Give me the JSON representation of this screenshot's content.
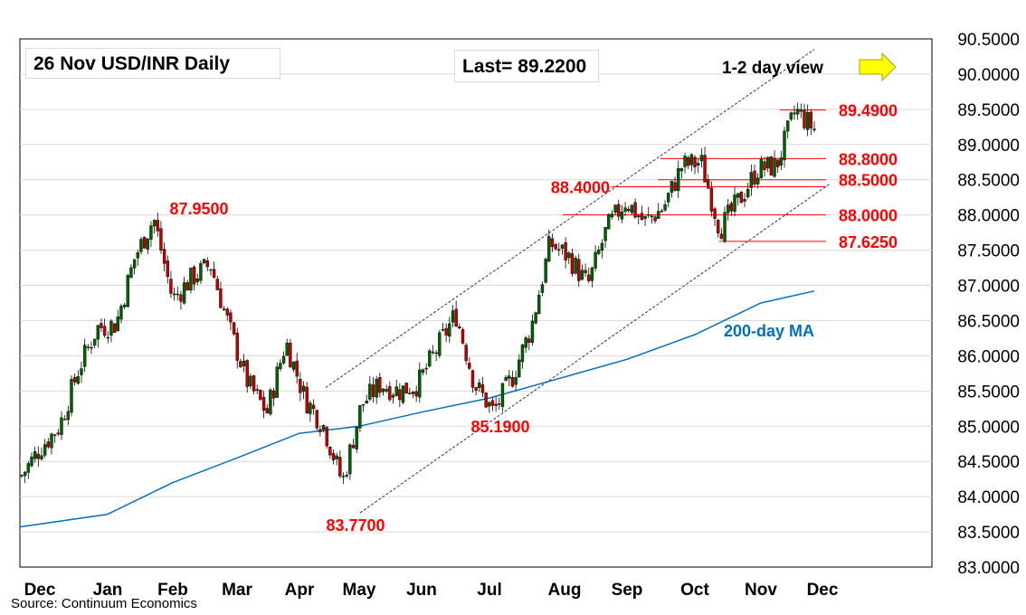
{
  "title": "26 Nov  USD/INR  Daily",
  "last_label": "Last= 89.2200",
  "view_label": "1-2 day view",
  "source": "Source: Continuum Economics",
  "ma_label": "200-day MA",
  "colors": {
    "up": "#006100",
    "down": "#c00000",
    "level": "#ff0000",
    "ma": "#0070c0",
    "channel": "#1f3864",
    "grid": "#d9d9d9",
    "arrow": "#ffff00"
  },
  "chart_data": {
    "type": "candlestick",
    "y_axis": {
      "ylim": [
        83.0,
        90.5
      ],
      "ticks": [
        "83.0000",
        "83.5000",
        "84.0000",
        "84.5000",
        "85.0000",
        "85.5000",
        "86.0000",
        "86.5000",
        "87.0000",
        "87.5000",
        "88.0000",
        "88.5000",
        "89.0000",
        "89.5000",
        "90.0000",
        "90.5000"
      ]
    },
    "x_axis": {
      "labels": [
        "Dec",
        "Jan",
        "Feb",
        "Mar",
        "Apr",
        "May",
        "Jun",
        "Jul",
        "Aug",
        "Sep",
        "Oct",
        "Nov",
        "Dec"
      ]
    },
    "last": 89.22,
    "price_path": [
      [
        "Dec",
        84.3
      ],
      [
        "Dec+",
        84.7
      ],
      [
        "Jan-",
        85.0
      ],
      [
        "Jan",
        85.8
      ],
      [
        "Jan+",
        86.4
      ],
      [
        "Feb-",
        86.45
      ],
      [
        "Feb",
        87.4
      ],
      [
        "Feb+",
        87.95
      ],
      [
        "Feb++",
        86.8
      ],
      [
        "Mar",
        87.1
      ],
      [
        "Mar+",
        87.3
      ],
      [
        "Mar++",
        86.4
      ],
      [
        "Apr-",
        85.6
      ],
      [
        "Apr",
        85.2
      ],
      [
        "Apr+",
        86.2
      ],
      [
        "Apr++",
        85.4
      ],
      [
        "May",
        85.0
      ],
      [
        "May+",
        84.2
      ],
      [
        "May++",
        85.3
      ],
      [
        "Jun-",
        85.6
      ],
      [
        "Jun",
        85.5
      ],
      [
        "Jun+",
        85.6
      ],
      [
        "Jul-",
        86.1
      ],
      [
        "Jul",
        86.6
      ],
      [
        "Jul+",
        85.6
      ],
      [
        "Jul++",
        85.2
      ],
      [
        "Aug-",
        85.7
      ],
      [
        "Aug",
        86.4
      ],
      [
        "Aug+",
        87.6
      ],
      [
        "Aug++",
        87.4
      ],
      [
        "Sep-",
        87.0
      ],
      [
        "Sep",
        87.8
      ],
      [
        "Sep+",
        88.2
      ],
      [
        "Sep++",
        87.9
      ],
      [
        "Oct-",
        88.1
      ],
      [
        "Oct",
        88.7
      ],
      [
        "Oct+",
        88.75
      ],
      [
        "Oct++",
        87.8
      ],
      [
        "Nov-",
        88.2
      ],
      [
        "Nov",
        88.65
      ],
      [
        "Nov+",
        88.7
      ],
      [
        "Nov++",
        89.49
      ],
      [
        "Dec",
        89.22
      ]
    ],
    "levels": [
      {
        "label": "89.4900",
        "value": 89.49
      },
      {
        "label": "88.8000",
        "value": 88.8
      },
      {
        "label": "88.5000",
        "value": 88.5
      },
      {
        "label": "88.4000",
        "value": 88.4
      },
      {
        "label": "88.0000",
        "value": 88.0
      },
      {
        "label": "87.6250",
        "value": 87.625
      }
    ],
    "annotations": [
      {
        "label": "87.9500",
        "value": 87.95
      },
      {
        "label": "85.1900",
        "value": 85.19
      },
      {
        "label": "83.7700",
        "value": 83.77
      }
    ],
    "ma200": [
      [
        "Dec",
        83.57
      ],
      [
        "Jan",
        83.75
      ],
      [
        "Feb",
        84.2
      ],
      [
        "Mar",
        84.55
      ],
      [
        "Apr",
        84.9
      ],
      [
        "May",
        85.0
      ],
      [
        "Jun",
        85.2
      ],
      [
        "Jul",
        85.4
      ],
      [
        "Aug",
        85.7
      ],
      [
        "Sep",
        85.95
      ],
      [
        "Oct",
        86.3
      ],
      [
        "Nov",
        86.75
      ],
      [
        "late Nov",
        86.92
      ]
    ]
  }
}
